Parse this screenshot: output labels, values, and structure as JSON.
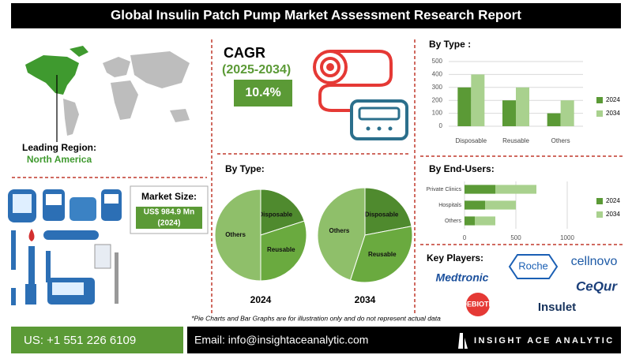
{
  "header": {
    "title": "Global Insulin Patch Pump Market Assessment Research Report"
  },
  "region": {
    "label": "Leading Region:",
    "value": "North America"
  },
  "cagr": {
    "label": "CAGR",
    "period": "(2025-2034)",
    "value": "10.4%"
  },
  "market_size": {
    "label": "Market Size:",
    "value": "US$ 984.9 Mn",
    "year": "(2024)"
  },
  "chart_data": [
    {
      "type": "bar",
      "title": "By Type :",
      "categories": [
        "Disposable",
        "Reusable",
        "Others"
      ],
      "series": [
        {
          "name": "2024",
          "color": "#5b9a36",
          "values": [
            300,
            200,
            100
          ]
        },
        {
          "name": "2034",
          "color": "#a9d18e",
          "values": [
            400,
            300,
            200
          ]
        }
      ],
      "ylim": [
        0,
        500
      ],
      "yticks": [
        0,
        100,
        200,
        300,
        400,
        500
      ],
      "grid": true,
      "legend": "right"
    },
    {
      "type": "bar",
      "orientation": "horizontal",
      "stacked": true,
      "title": "By End-Users:",
      "categories": [
        "Private Clinics",
        "Hospitals",
        "Others"
      ],
      "series": [
        {
          "name": "2024",
          "color": "#5b9a36",
          "values": [
            300,
            200,
            100
          ]
        },
        {
          "name": "2034",
          "color": "#a9d18e",
          "values": [
            400,
            300,
            200
          ]
        }
      ],
      "xlim": [
        0,
        1000
      ],
      "xticks": [
        0,
        500,
        1000
      ],
      "grid": true,
      "legend": "right"
    },
    {
      "type": "pie",
      "title": "By Type:",
      "subtitle": "2024",
      "categories": [
        "Disposable",
        "Reusable",
        "Others"
      ],
      "values": [
        20,
        30,
        50
      ],
      "colors": [
        "#4f8a2e",
        "#6aaa3f",
        "#8fbf6a"
      ]
    },
    {
      "type": "pie",
      "subtitle": "2034",
      "categories": [
        "Disposable",
        "Reusable",
        "Others"
      ],
      "values": [
        22,
        33,
        45
      ],
      "colors": [
        "#4f8a2e",
        "#6aaa3f",
        "#8fbf6a"
      ]
    }
  ],
  "key_players": {
    "title": "Key Players:",
    "names": [
      "Medtronic",
      "Roche",
      "cellnovo",
      "CeQur",
      "DEBIOTECH",
      "Insulet"
    ]
  },
  "note": "*Pie Charts and Bar Graphs are for illustration only and do not represent actual data",
  "footer": {
    "phone": "US: +1 551 226 6109",
    "email": "Email: info@insightaceanalytic.com",
    "brand": "INSIGHT ACE ANALYTIC"
  }
}
